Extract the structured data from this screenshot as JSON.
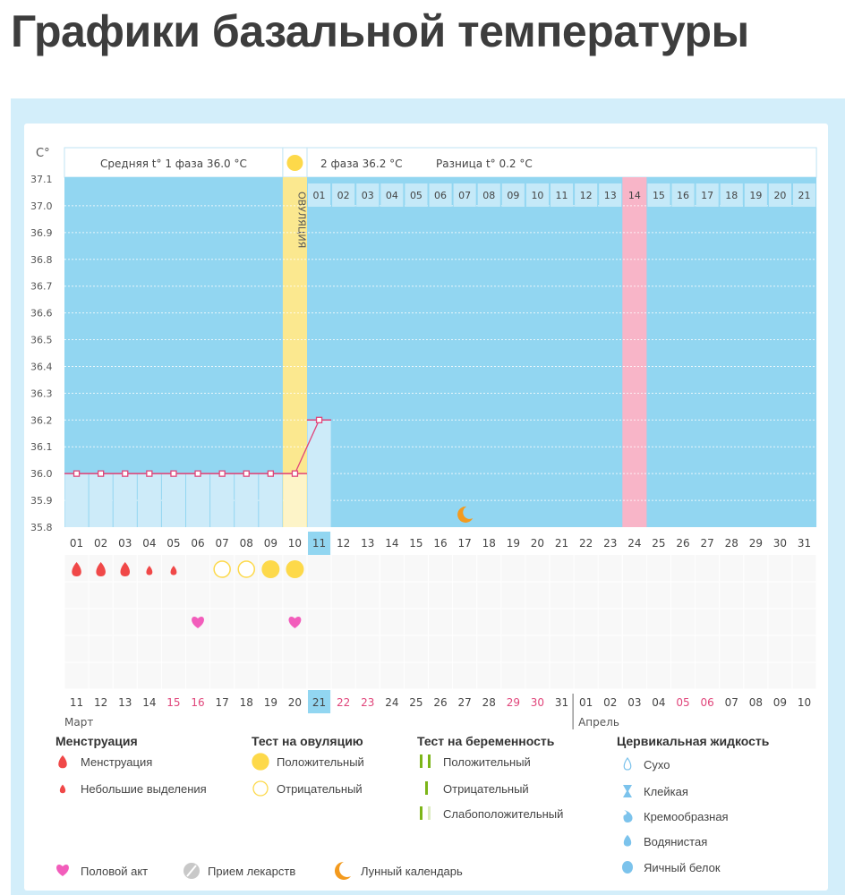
{
  "title": "Графики базальной температуры",
  "chart_data": {
    "type": "line",
    "ylabel": "C°",
    "ylim": [
      35.8,
      37.1
    ],
    "yticks": [
      "35.8",
      "35.9",
      "36.0",
      "36.1",
      "36.2",
      "36.3",
      "36.4",
      "36.5",
      "36.6",
      "36.7",
      "36.8",
      "36.9",
      "37.0",
      "37.1"
    ],
    "grid": true,
    "cycle_days": [
      "01",
      "02",
      "03",
      "04",
      "05",
      "06",
      "07",
      "08",
      "09",
      "10",
      "11",
      "12",
      "13",
      "14",
      "15",
      "16",
      "17",
      "18",
      "19",
      "20",
      "21",
      "22",
      "23",
      "24",
      "25",
      "26",
      "27",
      "28",
      "29",
      "30",
      "31"
    ],
    "dates": [
      "11",
      "12",
      "13",
      "14",
      "15",
      "16",
      "17",
      "18",
      "19",
      "20",
      "21",
      "22",
      "23",
      "24",
      "25",
      "26",
      "27",
      "28",
      "29",
      "30",
      "31",
      "01",
      "02",
      "03",
      "04",
      "05",
      "06",
      "07",
      "08",
      "09",
      "10"
    ],
    "weekend_dates_index": [
      4,
      5,
      11,
      12,
      18,
      19,
      25,
      26
    ],
    "today_index": 10,
    "month_labels": [
      "Март",
      "Апрель"
    ],
    "temperatures": [
      36.0,
      36.0,
      36.0,
      36.0,
      36.0,
      36.0,
      36.0,
      36.0,
      36.0,
      36.0,
      36.2
    ],
    "ovulation_day": 10,
    "phase2_day_labels": [
      "01",
      "02",
      "03",
      "04",
      "05",
      "06",
      "07",
      "08",
      "09",
      "10",
      "11",
      "12",
      "13",
      "14",
      "15",
      "16",
      "17",
      "18",
      "19",
      "20",
      "21"
    ],
    "highlight_phase2_day": 14,
    "phase1_label": "Средняя t° 1 фаза 36.0 °C",
    "phase2_label": "2 фаза 36.2 °C",
    "diff_label": "Разница t° 0.2 °C",
    "ovulation_label": "ОВУЛЯЦИЯ",
    "menstruation": {
      "heavy": [
        1,
        2,
        3
      ],
      "light": [
        4,
        5
      ]
    },
    "ovulation_test": {
      "negative": [
        7,
        8
      ],
      "positive": [
        9,
        10
      ]
    },
    "intercourse": [
      6,
      10
    ],
    "lunar": [
      17
    ]
  },
  "colors": {
    "plot": "#92d6f1",
    "bar": "#cdebf9",
    "ovulation": "#fbe88f",
    "highlight": "#f8b5c8",
    "line": "#e0457a",
    "weekend": "#e0457a",
    "drop": "#f04848",
    "heart": "#f25dbb",
    "sun": "#fdd94a",
    "moon": "#f39a1e",
    "test": "#7cb518",
    "cervix": "#7cc3ec"
  },
  "legend": {
    "menstruation": {
      "title": "Менструация",
      "items": [
        "Менструация",
        "Небольшие выделения"
      ]
    },
    "ovulation_test": {
      "title": "Тест на овуляцию",
      "items": [
        "Положительный",
        "Отрицательный"
      ]
    },
    "pregnancy_test": {
      "title": "Тест на беременность",
      "items": [
        "Положительный",
        "Отрицательный",
        "Слабоположительный"
      ]
    },
    "cervical": {
      "title": "Цервикальная жидкость",
      "items": [
        "Сухо",
        "Клейкая",
        "Кремообразная",
        "Водянистая",
        "Яичный белок"
      ]
    },
    "other": [
      "Половой акт",
      "Прием лекарств",
      "Лунный календарь"
    ]
  }
}
